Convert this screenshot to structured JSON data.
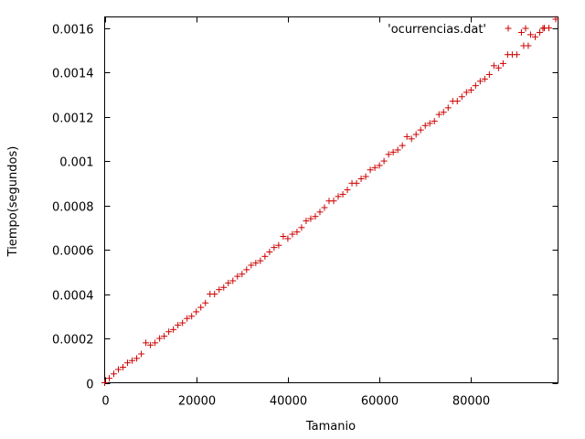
{
  "chart_data": {
    "type": "scatter",
    "xlabel": "Tamanio",
    "ylabel": "Tiempo(segundos)",
    "xlim": [
      0,
      99000
    ],
    "ylim": [
      0,
      0.00165
    ],
    "x_ticks": [
      "0",
      "20000",
      "40000",
      "60000",
      "80000"
    ],
    "x_tick_values": [
      0,
      20000,
      40000,
      60000,
      80000
    ],
    "y_ticks": [
      "0",
      "0.0002",
      "0.0004",
      "0.0006",
      "0.0008",
      "0.001",
      "0.0012",
      "0.0014",
      "0.0016"
    ],
    "y_tick_values": [
      0,
      0.0002,
      0.0004,
      0.0006,
      0.0008,
      0.001,
      0.0012,
      0.0014,
      0.0016
    ],
    "grid": false,
    "legend_position": "top-right",
    "series": [
      {
        "name": "'ocurrencias.dat'",
        "color": "#cc0000",
        "marker": "plus",
        "points": [
          [
            0,
            0.0
          ],
          [
            1000,
            2e-05
          ],
          [
            2000,
            4e-05
          ],
          [
            3000,
            6e-05
          ],
          [
            4000,
            7e-05
          ],
          [
            5000,
            9e-05
          ],
          [
            6000,
            0.0001
          ],
          [
            7000,
            0.00011
          ],
          [
            8000,
            0.00013
          ],
          [
            9000,
            0.00018
          ],
          [
            10000,
            0.00017
          ],
          [
            11000,
            0.00018
          ],
          [
            12000,
            0.0002
          ],
          [
            13000,
            0.00021
          ],
          [
            14000,
            0.00023
          ],
          [
            15000,
            0.00024
          ],
          [
            16000,
            0.00026
          ],
          [
            17000,
            0.00027
          ],
          [
            18000,
            0.00029
          ],
          [
            19000,
            0.0003
          ],
          [
            20000,
            0.00032
          ],
          [
            21000,
            0.00034
          ],
          [
            22000,
            0.00036
          ],
          [
            23000,
            0.0004
          ],
          [
            24000,
            0.0004
          ],
          [
            25000,
            0.00042
          ],
          [
            26000,
            0.00043
          ],
          [
            27000,
            0.00045
          ],
          [
            28000,
            0.00046
          ],
          [
            29000,
            0.00048
          ],
          [
            30000,
            0.00049
          ],
          [
            31000,
            0.00051
          ],
          [
            32000,
            0.00053
          ],
          [
            33000,
            0.00054
          ],
          [
            34000,
            0.00055
          ],
          [
            35000,
            0.00057
          ],
          [
            36000,
            0.00059
          ],
          [
            37000,
            0.00061
          ],
          [
            38000,
            0.00062
          ],
          [
            39000,
            0.00066
          ],
          [
            40000,
            0.00065
          ],
          [
            41000,
            0.00067
          ],
          [
            42000,
            0.00068
          ],
          [
            43000,
            0.0007
          ],
          [
            44000,
            0.00073
          ],
          [
            45000,
            0.00074
          ],
          [
            46000,
            0.00075
          ],
          [
            47000,
            0.00077
          ],
          [
            48000,
            0.00079
          ],
          [
            49000,
            0.00082
          ],
          [
            50000,
            0.00082
          ],
          [
            51000,
            0.00084
          ],
          [
            52000,
            0.00085
          ],
          [
            53000,
            0.00087
          ],
          [
            54000,
            0.0009
          ],
          [
            55000,
            0.0009
          ],
          [
            56000,
            0.00092
          ],
          [
            57000,
            0.00093
          ],
          [
            58000,
            0.00096
          ],
          [
            59000,
            0.00097
          ],
          [
            60000,
            0.00098
          ],
          [
            61000,
            0.001
          ],
          [
            62000,
            0.00103
          ],
          [
            63000,
            0.00104
          ],
          [
            64000,
            0.00105
          ],
          [
            65000,
            0.00107
          ],
          [
            66000,
            0.00111
          ],
          [
            67000,
            0.0011
          ],
          [
            68000,
            0.00112
          ],
          [
            69000,
            0.00114
          ],
          [
            70000,
            0.00116
          ],
          [
            71000,
            0.00117
          ],
          [
            72000,
            0.00118
          ],
          [
            73000,
            0.00121
          ],
          [
            74000,
            0.00122
          ],
          [
            75000,
            0.00124
          ],
          [
            76000,
            0.00127
          ],
          [
            77000,
            0.00127
          ],
          [
            78000,
            0.00129
          ],
          [
            79000,
            0.00131
          ],
          [
            80000,
            0.00132
          ],
          [
            81000,
            0.00134
          ],
          [
            82000,
            0.00136
          ],
          [
            83000,
            0.00137
          ],
          [
            84000,
            0.00139
          ],
          [
            85000,
            0.00143
          ],
          [
            86000,
            0.00142
          ],
          [
            87000,
            0.00144
          ],
          [
            88000,
            0.00148
          ],
          [
            89000,
            0.00148
          ],
          [
            90000,
            0.00148
          ],
          [
            91000,
            0.00158
          ],
          [
            91500,
            0.00152
          ],
          [
            92500,
            0.00152
          ],
          [
            93000,
            0.00157
          ],
          [
            94000,
            0.00156
          ],
          [
            95000,
            0.00158
          ],
          [
            96000,
            0.0016
          ],
          [
            97000,
            0.0016
          ],
          [
            98500,
            0.00164
          ]
        ]
      }
    ]
  }
}
